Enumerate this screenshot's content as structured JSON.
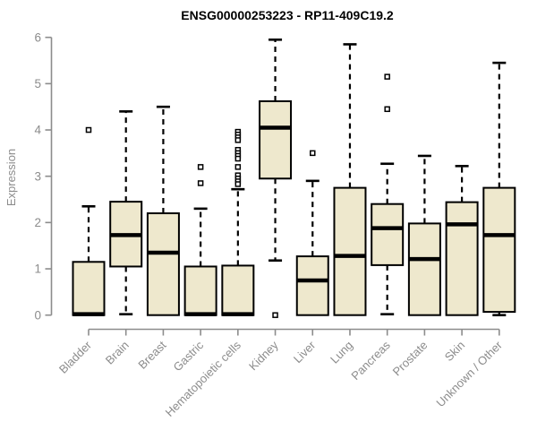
{
  "chart_data": {
    "type": "boxplot",
    "title": "ENSG00000253223 - RP11-409C19.2",
    "ylabel": "Expression",
    "xlabel": "",
    "ylim": [
      0,
      6
    ],
    "yticks": [
      0,
      1,
      2,
      3,
      4,
      5,
      6
    ],
    "grid": false,
    "legend": "none",
    "categories": [
      "Bladder",
      "Brain",
      "Breast",
      "Gastric",
      "Hematopoietic cells",
      "Kidney",
      "Liver",
      "Lung",
      "Pancreas",
      "Prostate",
      "Skin",
      "Unknown / Other"
    ],
    "series": [
      {
        "name": "Bladder",
        "q1": 0,
        "median": 0.02,
        "q3": 1.15,
        "whisker_low": 0,
        "whisker_high": 2.35,
        "outliers": [
          4.0
        ]
      },
      {
        "name": "Brain",
        "q1": 1.05,
        "median": 1.73,
        "q3": 2.45,
        "whisker_low": 0.02,
        "whisker_high": 4.4,
        "outliers": []
      },
      {
        "name": "Breast",
        "q1": 0,
        "median": 1.35,
        "q3": 2.2,
        "whisker_low": 0,
        "whisker_high": 4.5,
        "outliers": []
      },
      {
        "name": "Gastric",
        "q1": 0,
        "median": 0.02,
        "q3": 1.05,
        "whisker_low": 0,
        "whisker_high": 2.3,
        "outliers": [
          3.2,
          2.85
        ]
      },
      {
        "name": "Hematopoietic cells",
        "q1": 0,
        "median": 0.02,
        "q3": 1.07,
        "whisker_low": 0,
        "whisker_high": 2.72,
        "outliers": [
          3.96,
          3.9,
          3.84,
          3.78,
          3.57,
          3.5,
          3.44,
          3.38,
          3.2,
          3.02,
          2.95,
          2.89,
          2.83
        ]
      },
      {
        "name": "Kidney",
        "q1": 2.95,
        "median": 4.05,
        "q3": 4.62,
        "whisker_low": 1.18,
        "whisker_high": 5.95,
        "outliers": [
          0.0
        ]
      },
      {
        "name": "Liver",
        "q1": 0,
        "median": 0.75,
        "q3": 1.27,
        "whisker_low": 0,
        "whisker_high": 2.9,
        "outliers": [
          3.5
        ]
      },
      {
        "name": "Lung",
        "q1": 0,
        "median": 1.28,
        "q3": 2.75,
        "whisker_low": 0,
        "whisker_high": 5.85,
        "outliers": []
      },
      {
        "name": "Pancreas",
        "q1": 1.08,
        "median": 1.88,
        "q3": 2.4,
        "whisker_low": 0.02,
        "whisker_high": 3.27,
        "outliers": [
          5.15,
          4.45
        ]
      },
      {
        "name": "Prostate",
        "q1": 0,
        "median": 1.21,
        "q3": 1.98,
        "whisker_low": 0,
        "whisker_high": 3.44,
        "outliers": []
      },
      {
        "name": "Skin",
        "q1": 0,
        "median": 1.96,
        "q3": 2.44,
        "whisker_low": 0,
        "whisker_high": 3.22,
        "outliers": []
      },
      {
        "name": "Unknown / Other",
        "q1": 0.07,
        "median": 1.73,
        "q3": 2.75,
        "whisker_low": 0,
        "whisker_high": 5.45,
        "outliers": []
      }
    ],
    "colors": {
      "box_fill": "#EEE8CD",
      "box_border": "#000000",
      "median": "#000000",
      "whisker": "#000000",
      "outlier_stroke": "#000000",
      "axis": "#8C8C8C",
      "tick_text": "#8C8C8C",
      "title_text": "#000000",
      "background": "#FFFFFF"
    }
  }
}
